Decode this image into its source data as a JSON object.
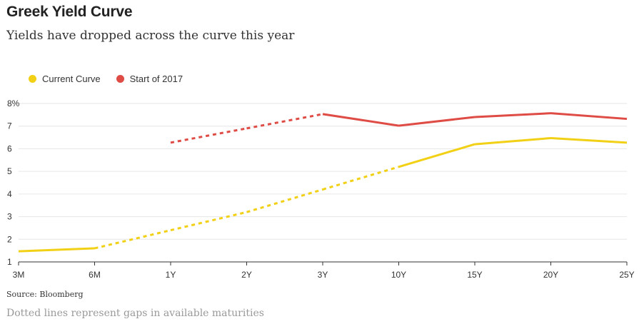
{
  "chart_data": {
    "type": "line",
    "title": "Greek Yield Curve",
    "subtitle": "Yields have dropped across the curve this year",
    "categories": [
      "3M",
      "6M",
      "1Y",
      "2Y",
      "3Y",
      "10Y",
      "15Y",
      "20Y",
      "25Y"
    ],
    "y_tick_labels": [
      "1",
      "2",
      "3",
      "4",
      "5",
      "6",
      "7",
      "8%"
    ],
    "y_ticks": [
      1,
      2,
      3,
      4,
      5,
      6,
      7,
      8
    ],
    "ylim": [
      1,
      8
    ],
    "grid": true,
    "legend_position": "top-left",
    "series": [
      {
        "name": "Current Curve",
        "color": "#f2d015",
        "values": [
          1.47,
          1.6,
          2.4,
          3.2,
          4.2,
          5.2,
          6.2,
          6.47,
          6.27
        ],
        "dotted_segments": [
          [
            1,
            5
          ]
        ]
      },
      {
        "name": "Start of 2017",
        "color": "#de4c45",
        "values": [
          null,
          null,
          6.27,
          6.9,
          7.53,
          7.02,
          7.4,
          7.57,
          7.32
        ],
        "dotted_segments": [
          [
            2,
            4
          ]
        ]
      }
    ],
    "source": "Source: Bloomberg",
    "note": "Dotted lines represent gaps in available maturities"
  }
}
